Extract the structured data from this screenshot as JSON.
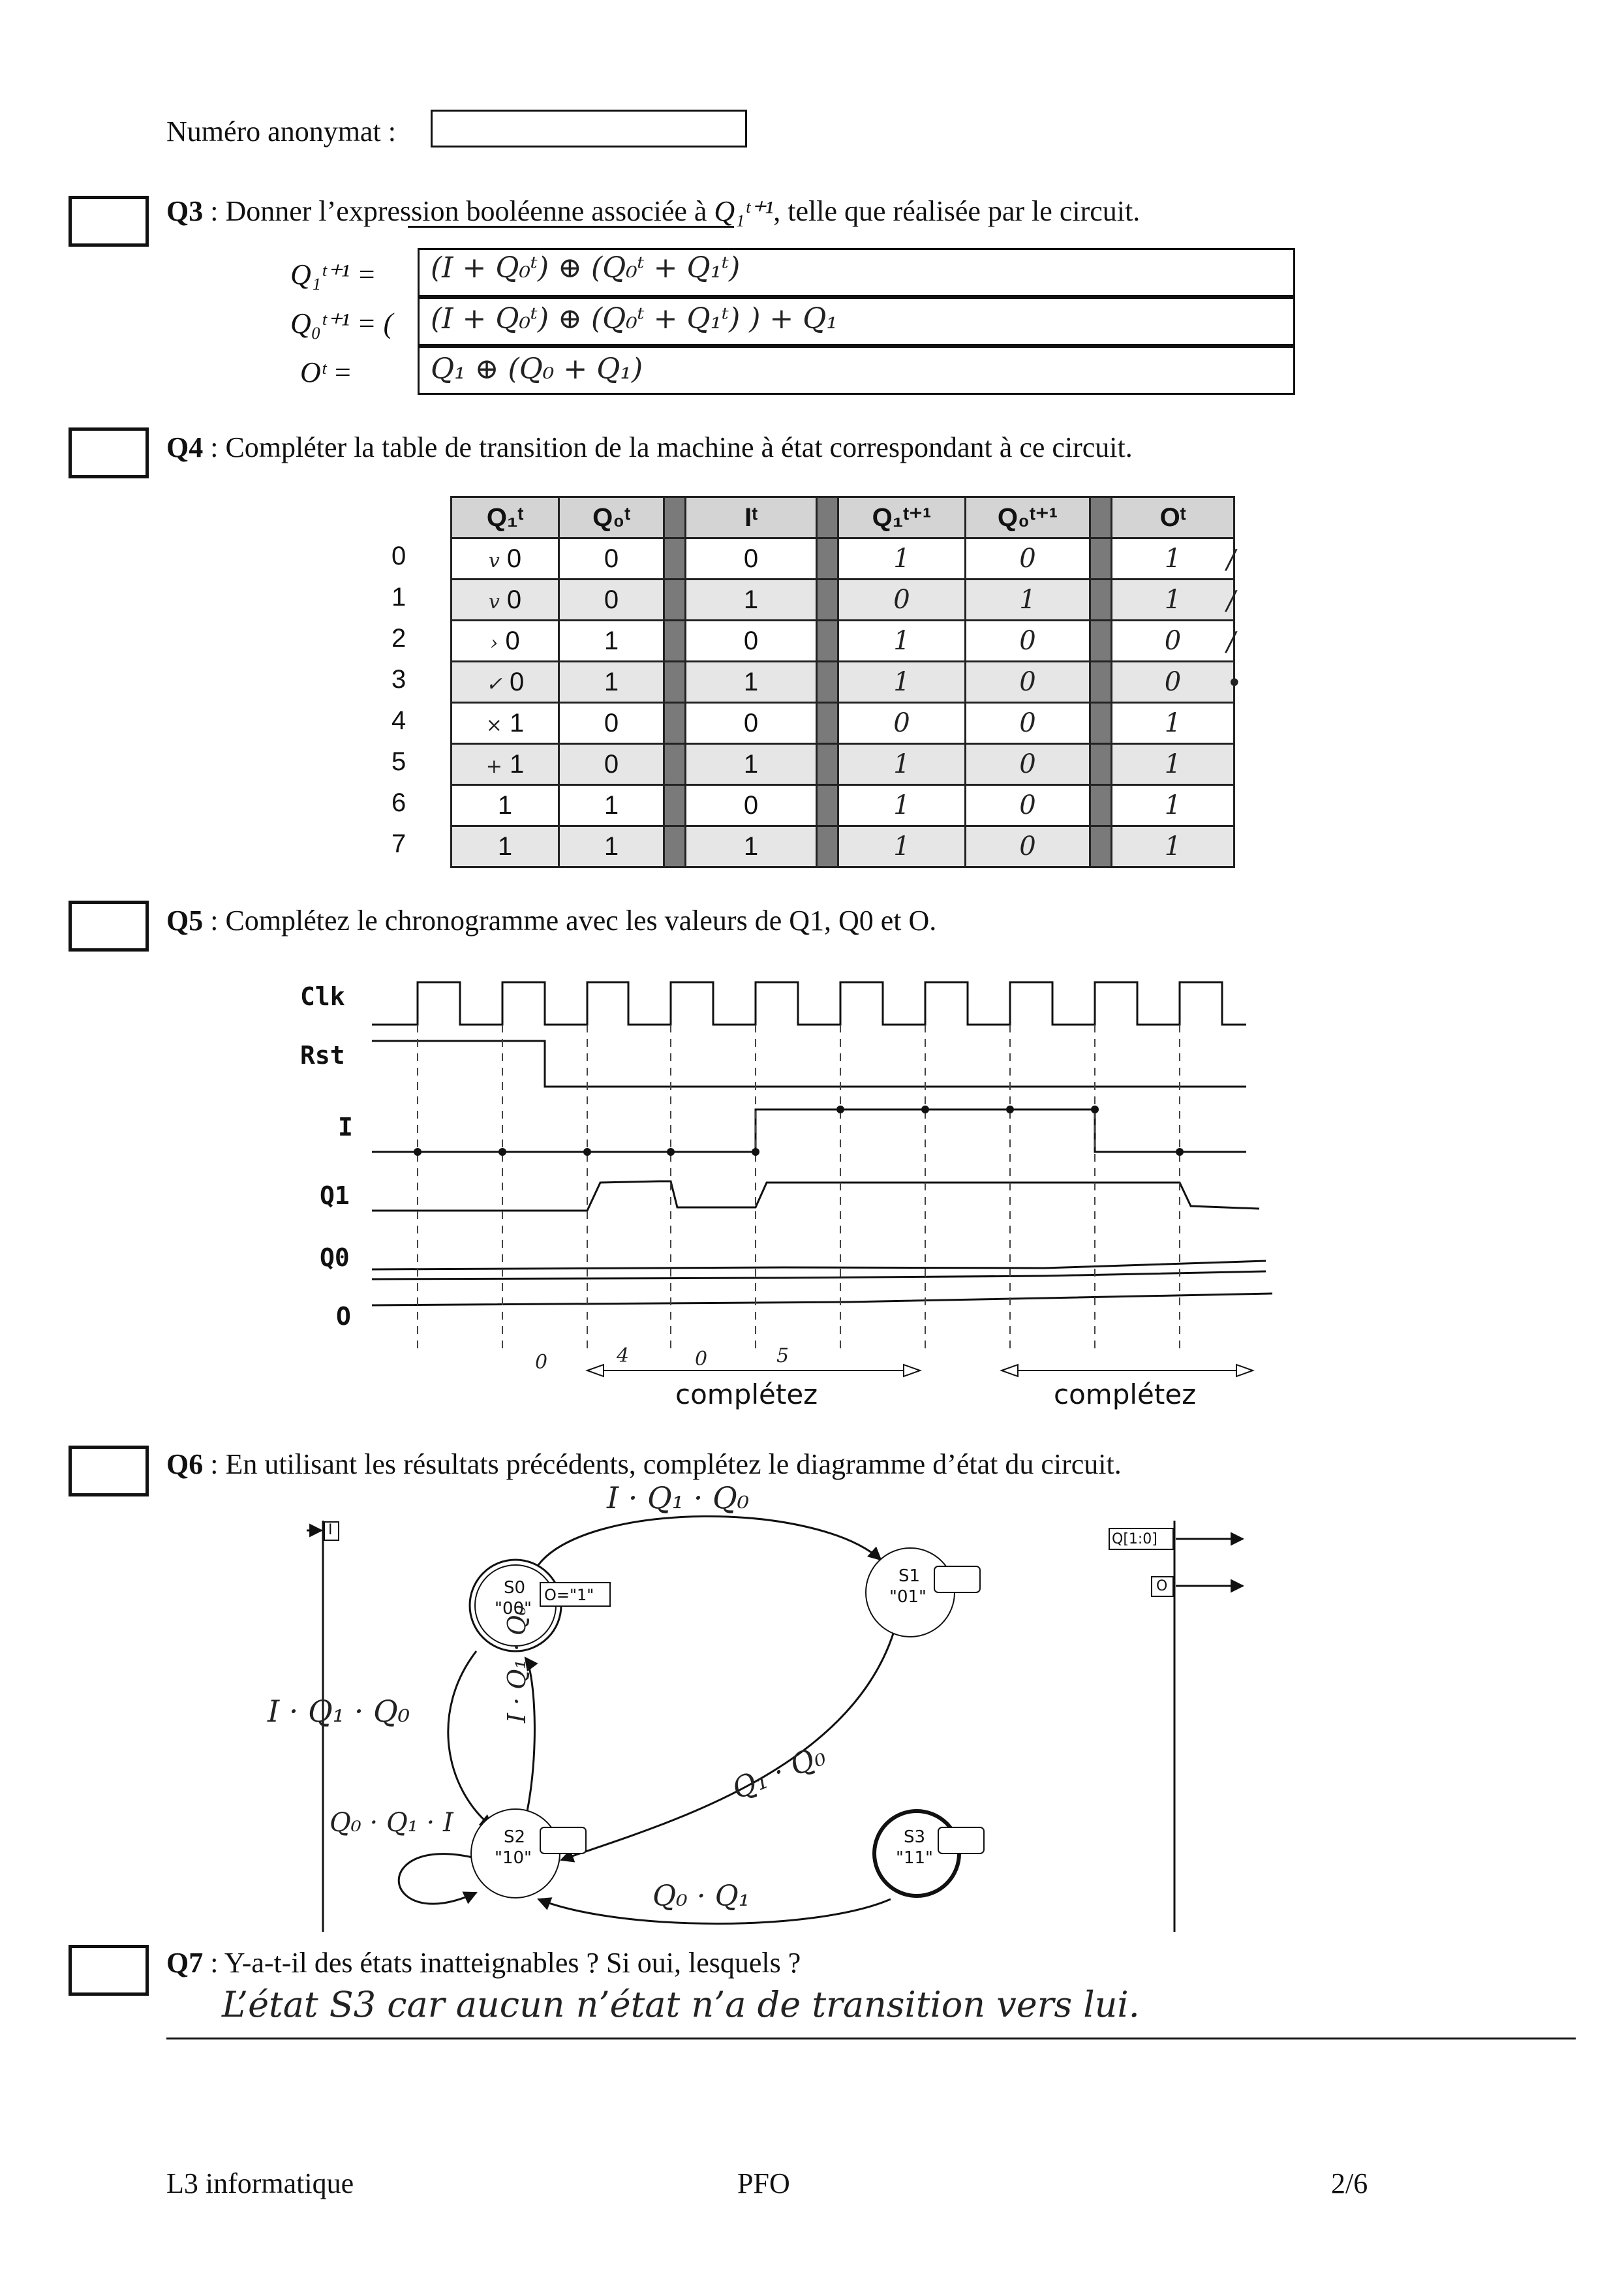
{
  "header": {
    "anonymat_label": "Numéro anonymat :",
    "anonymat_value": ""
  },
  "q3": {
    "num": "Q3",
    "text": " : Donner l’expression booléenne associée à ",
    "text_math": "Q₁ᵗ⁺¹",
    "text_end": ", telle que réalisée par le circuit.",
    "labels": [
      "Q₁ᵗ⁺¹ =",
      "Q₀ᵗ⁺¹ = (",
      "Oᵗ  ="
    ],
    "answers": [
      "(I + Q₀ᵗ) ⊕ (Q₀ᵗ + Q₁ᵗ)",
      "(I + Q₀ᵗ) ⊕ (Q₀ᵗ + Q₁ᵗ) )  +  Q₁",
      "Q₁ ⊕ (Q₀ + Q₁)"
    ]
  },
  "q4": {
    "num": "Q4",
    "text": " : Compléter la table de transition de la machine à état correspondant à ce circuit.",
    "headers": [
      "Q₁ᵗ",
      "Q₀ᵗ",
      "Iᵗ",
      "Q₁ᵗ⁺¹",
      "Q₀ᵗ⁺¹",
      "Oᵗ"
    ],
    "rows": [
      {
        "idx": "0",
        "mark": "v",
        "q1": "0",
        "q0": "0",
        "i": "0",
        "nq1": "1",
        "nq0": "0",
        "o": "1",
        "tick": "/"
      },
      {
        "idx": "1",
        "mark": "v",
        "q1": "0",
        "q0": "0",
        "i": "1",
        "nq1": "0",
        "nq0": "1",
        "o": "1",
        "tick": "/"
      },
      {
        "idx": "2",
        "mark": "›",
        "q1": "0",
        "q0": "1",
        "i": "0",
        "nq1": "1",
        "nq0": "0",
        "o": "0",
        "tick": "/"
      },
      {
        "idx": "3",
        "mark": "✓",
        "q1": "0",
        "q0": "1",
        "i": "1",
        "nq1": "1",
        "nq0": "0",
        "o": "0",
        "tick": "•"
      },
      {
        "idx": "4",
        "mark": "×",
        "q1": "1",
        "q0": "0",
        "i": "0",
        "nq1": "0",
        "nq0": "0",
        "o": "1",
        "tick": ""
      },
      {
        "idx": "5",
        "mark": "+",
        "q1": "1",
        "q0": "0",
        "i": "1",
        "nq1": "1",
        "nq0": "0",
        "o": "1",
        "tick": ""
      },
      {
        "idx": "6",
        "mark": "",
        "q1": "1",
        "q0": "1",
        "i": "0",
        "nq1": "1",
        "nq0": "0",
        "o": "1",
        "tick": ""
      },
      {
        "idx": "7",
        "mark": "",
        "q1": "1",
        "q0": "1",
        "i": "1",
        "nq1": "1",
        "nq0": "0",
        "o": "1",
        "tick": ""
      }
    ]
  },
  "q5": {
    "num": "Q5",
    "text": " : Complétez le chronogramme avec les valeurs de Q1, Q0 et O.",
    "signals": [
      "Clk",
      "Rst",
      "I",
      "Q1",
      "Q0",
      "O"
    ],
    "state_notes": [
      "0",
      "4",
      "0",
      "5"
    ],
    "completez_1": "complétez",
    "completez_2": "complétez"
  },
  "q6": {
    "num": "Q6",
    "text": " : En utilisant les résultats précédents, complétez le diagramme d’état du circuit.",
    "input_port": "I",
    "output_ports": [
      "Q[1:0]",
      "O"
    ],
    "states": [
      {
        "name": "S0",
        "code": "\"00\"",
        "output": "O=\"1\""
      },
      {
        "name": "S1",
        "code": "\"01\"",
        "output": ""
      },
      {
        "name": "S2",
        "code": "\"10\"",
        "output": ""
      },
      {
        "name": "S3",
        "code": "\"11\"",
        "output": ""
      }
    ],
    "transitions": [
      "I · Q₁ · Q₀",
      "I · Q₁ · Q₀",
      "Q₀ · Q₁ · I",
      "I · Q₁ · Q₀",
      "Q₁ · Q₀",
      "Q₀ · Q₁"
    ]
  },
  "q7": {
    "num": "Q7",
    "text": " : Y-a-t-il des états inatteignables ? Si oui, lesquels ?",
    "answer": "L’état S3 car aucun n’état n’a de transition vers lui."
  },
  "footer": {
    "left": "L3 informatique",
    "center": "PFO",
    "right": "2/6"
  }
}
